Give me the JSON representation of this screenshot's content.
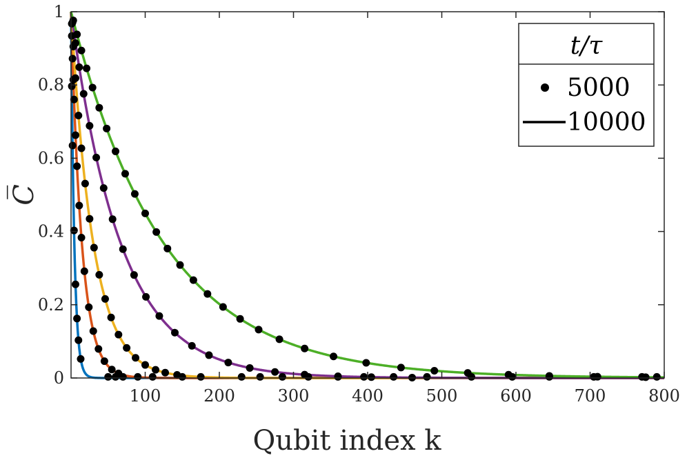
{
  "chart_data": {
    "type": "line",
    "title": "",
    "xlabel": "Qubit index k",
    "ylabel": "C̅",
    "xlim": [
      0,
      800
    ],
    "ylim": [
      0,
      1
    ],
    "xticks": [
      100,
      200,
      300,
      400,
      500,
      600,
      700,
      800
    ],
    "xtick_labels": [
      "100",
      "200",
      "300",
      "400",
      "500",
      "600",
      "700",
      "800"
    ],
    "yticks": [
      0,
      0.2,
      0.4,
      0.6,
      0.8,
      1
    ],
    "ytick_labels": [
      "0",
      "0.2",
      "0.4",
      "0.6",
      "0.8",
      "1"
    ],
    "grid": false,
    "legend": {
      "position": "top-right",
      "title": "t/τ",
      "entries": [
        {
          "label": "5000",
          "marker": "dot"
        },
        {
          "label": "10000",
          "marker": "line"
        }
      ]
    },
    "series": [
      {
        "color": "#0072BD",
        "decay": 4.4
      },
      {
        "color": "#D95319",
        "decay": 14.6
      },
      {
        "color": "#EDB120",
        "decay": 30
      },
      {
        "color": "#7E2F8E",
        "decay": 67
      },
      {
        "color": "#4DAF27",
        "decay": 125
      }
    ],
    "dots_x": [
      [
        1,
        2,
        4,
        6,
        8,
        10,
        13
      ],
      [
        1,
        2,
        3,
        4,
        6,
        8,
        11,
        14,
        18,
        24,
        30,
        37,
        45,
        55,
        64
      ],
      [
        1,
        3,
        6,
        10,
        14,
        19,
        25,
        31,
        38,
        46,
        54,
        64,
        75,
        87,
        100,
        114,
        127,
        143
      ],
      [
        2,
        6,
        11,
        17,
        25,
        34,
        44,
        56,
        70,
        85,
        101,
        119,
        140,
        163,
        186,
        212,
        241,
        275,
        315,
        360,
        405,
        460
      ],
      [
        3,
        8,
        14,
        21,
        29,
        38,
        48,
        60,
        73,
        86,
        100,
        115,
        130,
        147,
        165,
        184,
        205,
        228,
        253,
        281,
        315,
        354,
        398,
        445,
        490,
        535,
        590,
        645,
        710,
        775
      ]
    ],
    "dots_extra_x": [
      50,
      60,
      70,
      90,
      110,
      150,
      175,
      230,
      255,
      285,
      320,
      360,
      395,
      435,
      480,
      540,
      595,
      645,
      705,
      770,
      790
    ]
  }
}
